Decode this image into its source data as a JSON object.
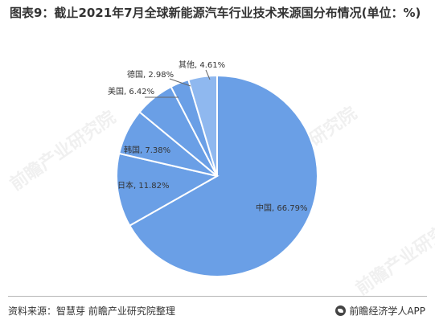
{
  "title": "图表9：截止2021年7月全球新能源汽车行业技术来源国分布情况(单位：%)",
  "source": "资料来源：智慧芽 前瞻产业研究院整理",
  "brand": "前瞻经济学人APP",
  "watermark": "前瞻产业研究院",
  "colors": {
    "slice": "#6a9fe6",
    "slice_small": "#8fb8ef",
    "edge": "#ffffff",
    "label": "#333333",
    "leader": "#666666"
  },
  "chart_data": {
    "type": "pie",
    "title": "图表9：截止2021年7月全球新能源汽车行业技术来源国分布情况(单位：%)",
    "slices": [
      {
        "label": "中国",
        "value": 66.79,
        "text": "中国, 66.79%"
      },
      {
        "label": "日本",
        "value": 11.82,
        "text": "日本, 11.82%"
      },
      {
        "label": "韩国",
        "value": 7.38,
        "text": "韩国, 7.38%"
      },
      {
        "label": "美国",
        "value": 6.42,
        "text": "美国, 6.42%"
      },
      {
        "label": "德国",
        "value": 2.98,
        "text": "德国, 2.98%"
      },
      {
        "label": "其他",
        "value": 4.61,
        "text": "其他, 4.61%"
      }
    ],
    "start_angle_deg": 0,
    "direction": "clockwise"
  }
}
